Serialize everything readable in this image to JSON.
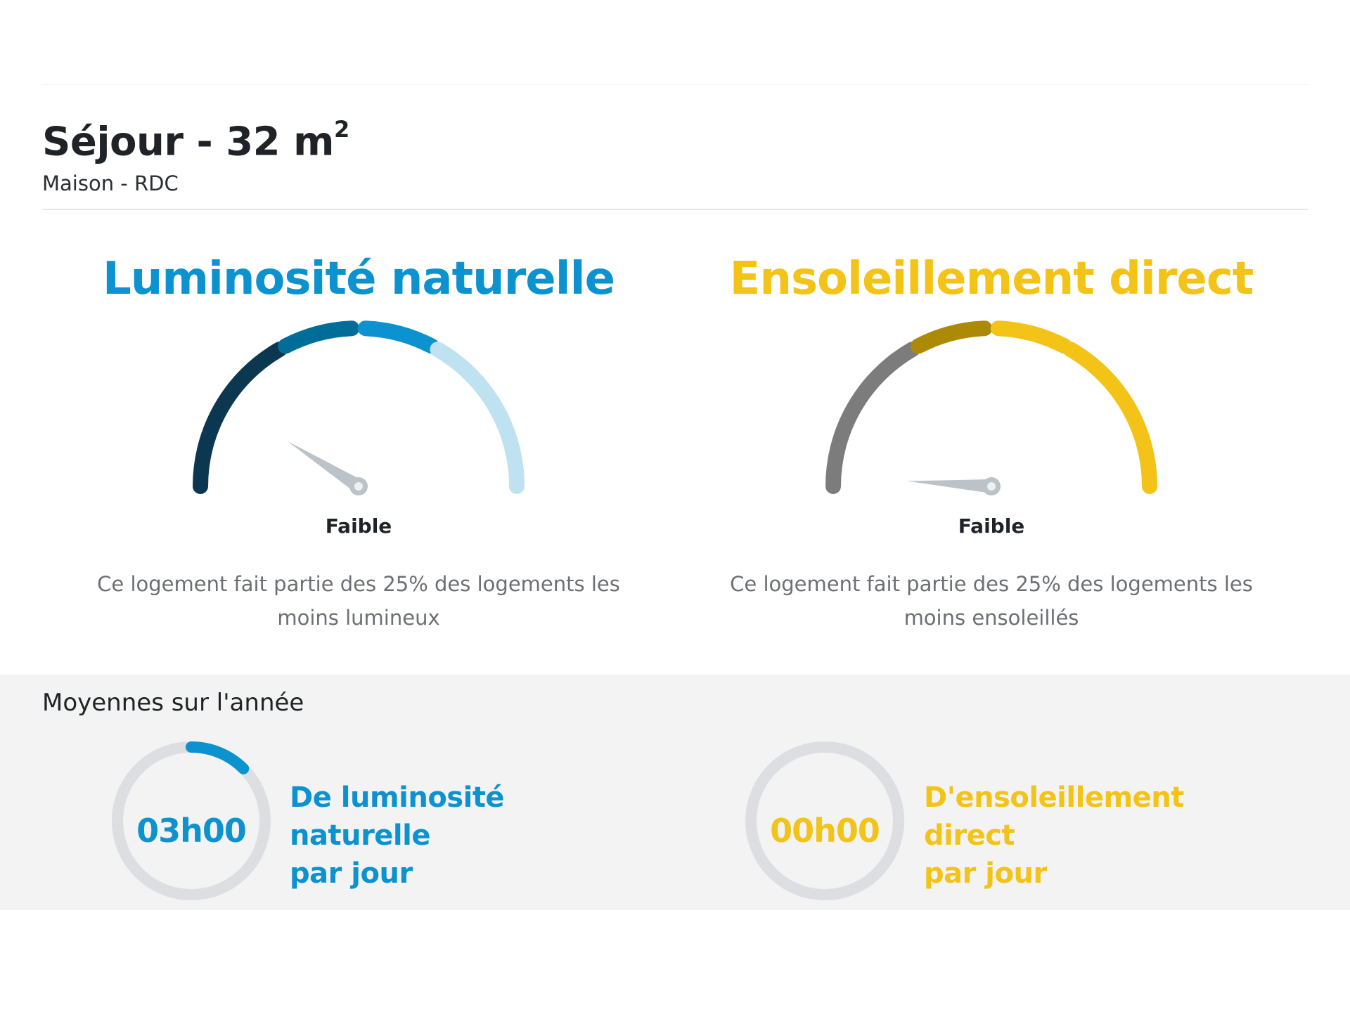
{
  "room": {
    "name": "Séjour - 32 m",
    "area_exponent": "2",
    "location": "Maison - RDC"
  },
  "luminosite": {
    "title": "Luminosité naturelle",
    "level": "Faible",
    "description": "Ce logement fait partie des 25% des logements les moins lumineux",
    "segment_colors": [
      "#0b3850",
      "#006d99",
      "#0c93cf",
      "#bfe2f1"
    ],
    "needle_fraction": 0.18,
    "accent": "#0c93cf"
  },
  "ensoleillement": {
    "title": "Ensoleillement direct",
    "level": "Faible",
    "description": "Ce logement fait partie des 25% des logements les moins ensoleillés",
    "segment_colors": [
      "#7c7c7c",
      "#ad8a06",
      "#f3c317",
      "#f3c317"
    ],
    "needle_fraction": 0.02,
    "accent": "#f3c317"
  },
  "averages": {
    "title": "Moyennes sur l'année",
    "luminosite": {
      "value": "03h00",
      "label_line1": "De luminosité naturelle",
      "label_line2": "par jour",
      "fraction": 0.125,
      "color": "#0c93cf"
    },
    "ensoleillement": {
      "value": "00h00",
      "label_line1": "D'ensoleillement direct",
      "label_line2": "par jour",
      "fraction": 0.0,
      "color": "#f3c317"
    }
  }
}
